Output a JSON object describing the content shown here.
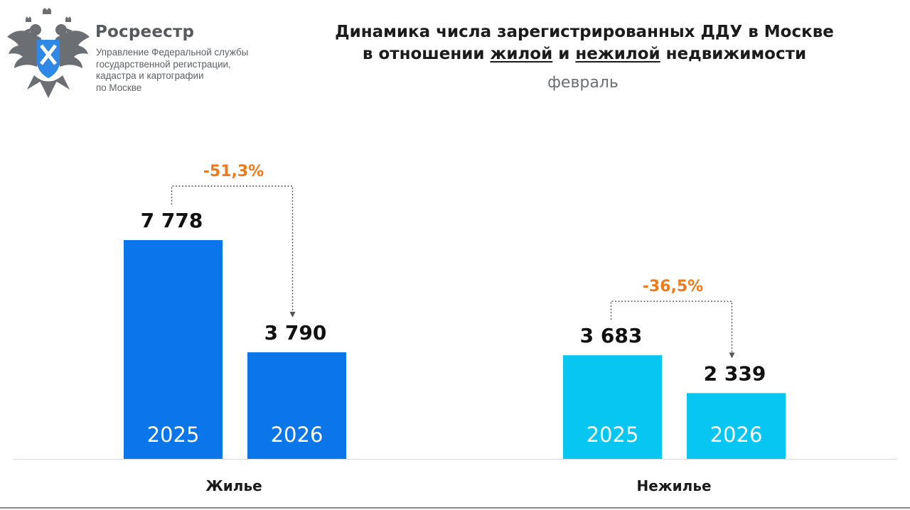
{
  "header": {
    "org_name": "Росреестр",
    "org_subtitle": "Управление Федеральной службы\nгосударственной регистрации,\nкадастра и картографии\nпо Москве",
    "logo_icon": "double-headed-eagle-emblem-icon"
  },
  "chart_data": {
    "type": "bar",
    "title_line1": "Динамика числа зарегистрированных ДДУ в Москве",
    "title_line2_pre": "в отношении ",
    "title_line2_underlined_1": "жилой",
    "title_line2_mid": " и ",
    "title_line2_underlined_2": "нежилой",
    "title_line2_post": " недвижимости",
    "subtitle": "февраль",
    "groups": [
      {
        "category": "Жилье",
        "color": "#0a76ea",
        "bars": [
          {
            "year": "2025",
            "value": 7778,
            "label": "7 778"
          },
          {
            "year": "2026",
            "value": 3790,
            "label": "3 790"
          }
        ],
        "change": "-51,3%"
      },
      {
        "category": "Нежилье",
        "color": "#07c6f2",
        "bars": [
          {
            "year": "2025",
            "value": 3683,
            "label": "3 683"
          },
          {
            "year": "2026",
            "value": 2339,
            "label": "2 339"
          }
        ],
        "change": "-36,5%"
      }
    ],
    "change_color": "#ef7a1a",
    "ylim": [
      0,
      7778
    ]
  }
}
